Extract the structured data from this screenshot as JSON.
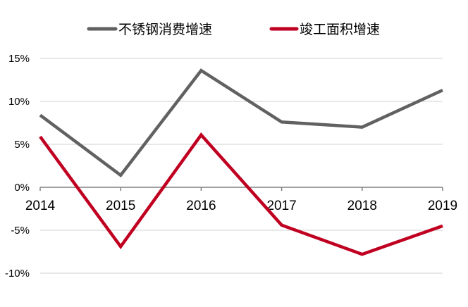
{
  "chart_data": {
    "type": "line",
    "title": "",
    "xlabel": "",
    "ylabel": "",
    "categories": [
      "2014",
      "2015",
      "2016",
      "2017",
      "2018",
      "2019"
    ],
    "series": [
      {
        "name": "不锈钢消费增速",
        "color": "#616161",
        "values": [
          8.4,
          1.4,
          13.6,
          7.6,
          7.0,
          11.3
        ]
      },
      {
        "name": "竣工面积增速",
        "color": "#C00020",
        "values": [
          5.9,
          -6.9,
          6.1,
          -4.4,
          -7.8,
          -4.5
        ]
      }
    ],
    "ylim": [
      -10,
      15
    ],
    "yticks": [
      15,
      10,
      5,
      0,
      -5,
      -10
    ],
    "ytick_labels": [
      "15%",
      "10%",
      "5%",
      "0%",
      "-5%",
      "-10%"
    ],
    "grid": true,
    "legend_position": "top"
  },
  "legend": {
    "items": [
      {
        "label": "不锈钢消费增速",
        "color": "#616161"
      },
      {
        "label": "竣工面积增速",
        "color": "#C00020"
      }
    ]
  }
}
